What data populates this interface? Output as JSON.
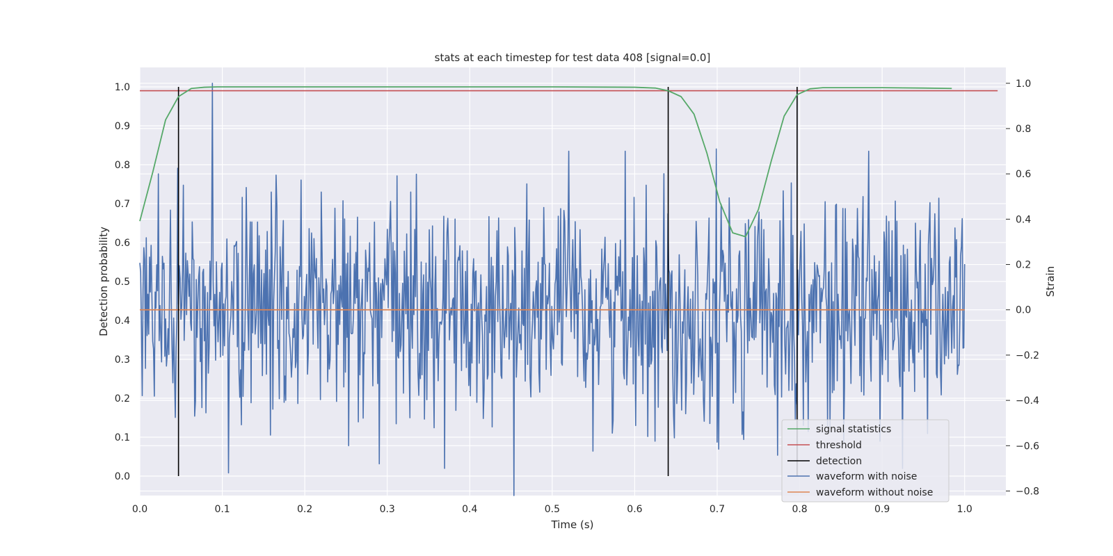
{
  "chart_data": {
    "type": "line",
    "title": "stats at each timestep for test data 408 [signal=0.0]",
    "xlabel": "Time (s)",
    "ylabel_left": "Detection probability",
    "ylabel_right": "Strain",
    "xlim": [
      0.0,
      1.05
    ],
    "ylim_left": [
      -0.05,
      1.05
    ],
    "ylim_right": [
      -0.82,
      1.07
    ],
    "x_ticks": [
      "0.0",
      "0.1",
      "0.2",
      "0.3",
      "0.4",
      "0.5",
      "0.6",
      "0.7",
      "0.8",
      "0.9",
      "1.0"
    ],
    "y_ticks_left": [
      "0.0",
      "0.1",
      "0.2",
      "0.3",
      "0.4",
      "0.5",
      "0.6",
      "0.7",
      "0.8",
      "0.9",
      "1.0"
    ],
    "y_ticks_right": [
      "−0.8",
      "−0.6",
      "−0.4",
      "−0.2",
      "0.0",
      "0.2",
      "0.4",
      "0.6",
      "0.8",
      "1.0"
    ],
    "grid": true,
    "legend_position": "bottom-right",
    "colors": {
      "plot_background": "#eaeaf2",
      "grid": "#ffffff",
      "signal_statistics": "#55a868",
      "threshold": "#c44e52",
      "detection": "#000000",
      "waveform_with_noise": "#4c72b0",
      "waveform_without_noise": "#dd8452",
      "text": "#262626"
    },
    "series": [
      {
        "name": "signal statistics",
        "axis": "left",
        "x": [
          0.0,
          0.0156,
          0.0312,
          0.0469,
          0.0625,
          0.0781,
          0.0938,
          0.1094,
          0.125,
          0.2,
          0.3,
          0.4,
          0.5,
          0.6,
          0.625,
          0.6406,
          0.6562,
          0.6719,
          0.6875,
          0.7031,
          0.7188,
          0.7344,
          0.75,
          0.7656,
          0.7812,
          0.7969,
          0.8125,
          0.8281,
          0.85,
          0.9,
          0.95,
          0.9844
        ],
        "y": [
          0.655,
          0.78,
          0.915,
          0.975,
          0.996,
          0.999,
          1.0,
          1.0,
          1.0,
          1.0,
          1.0,
          1.0,
          1.0,
          0.999,
          0.997,
          0.99,
          0.975,
          0.93,
          0.83,
          0.705,
          0.625,
          0.615,
          0.685,
          0.81,
          0.925,
          0.98,
          0.995,
          0.998,
          0.998,
          0.998,
          0.997,
          0.996
        ]
      },
      {
        "name": "threshold",
        "axis": "left",
        "x": [
          0.0,
          1.04
        ],
        "y": [
          0.99,
          0.99
        ]
      },
      {
        "name": "detection",
        "axis": "left",
        "x": [
          0.0469,
          0.6406,
          0.7969
        ],
        "ymin": 0.0,
        "ymax": 1.0
      },
      {
        "name": "waveform with noise",
        "axis": "right",
        "x_start": 0.0,
        "x_end": 1.0,
        "y_peak_times": [
          0.0059,
          0.0225,
          0.0371,
          0.0527,
          0.0879,
          0.1074,
          0.1289,
          0.2197,
          0.2529,
          0.29,
          0.3281,
          0.4531,
          0.6143,
          0.625,
          0.6992,
          0.7305,
          0.79,
          0.877,
          0.8975,
          0.916
        ],
        "y_peak_values": [
          0.22,
          0.6,
          0.44,
          0.55,
          1.0,
          -0.72,
          0.54,
          0.52,
          -0.6,
          -0.68,
          0.52,
          -0.82,
          0.55,
          -0.58,
          0.71,
          -0.55,
          0.56,
          0.5,
          -0.58,
          0.48
        ],
        "noise_amplitude": 0.24,
        "seed": 408
      },
      {
        "name": "waveform without noise",
        "axis": "right",
        "x": [
          0.0,
          1.0
        ],
        "y": [
          0.0,
          0.0
        ]
      }
    ],
    "legend": [
      "signal statistics",
      "threshold",
      "detection",
      "waveform with noise",
      "waveform without noise"
    ]
  }
}
